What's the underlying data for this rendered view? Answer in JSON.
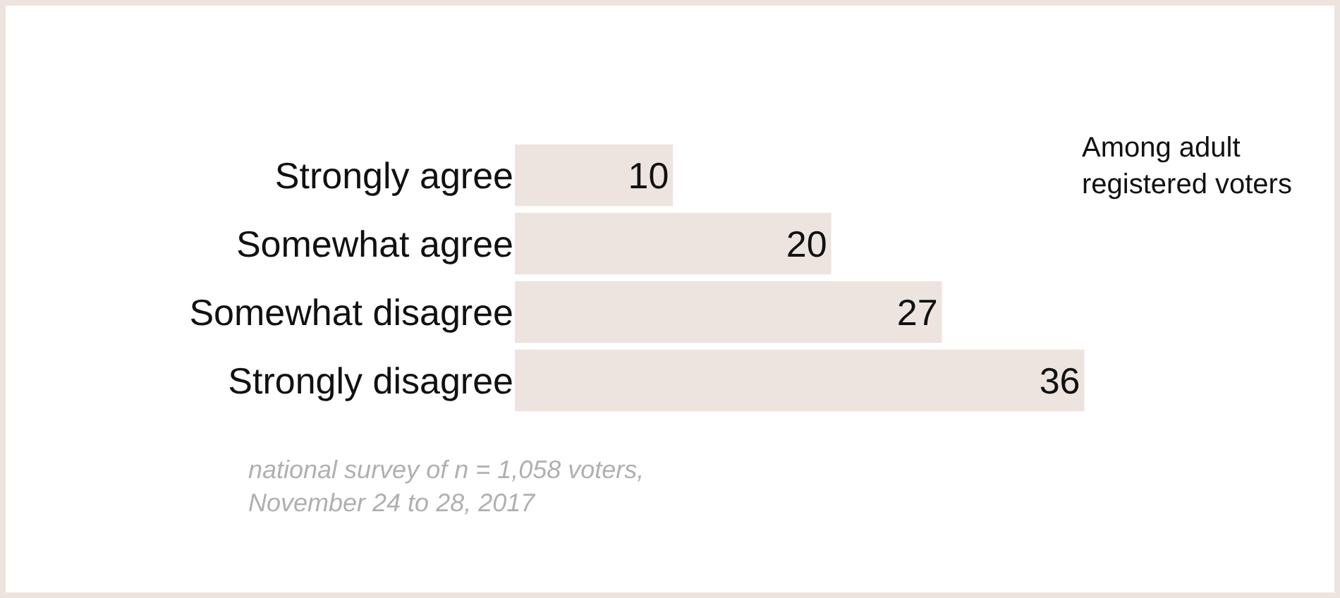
{
  "chart_data": {
    "type": "bar",
    "orientation": "horizontal",
    "categories": [
      "Strongly agree",
      "Somewhat agree",
      "Somewhat disagree",
      "Strongly disagree"
    ],
    "values": [
      10,
      20,
      27,
      36
    ],
    "color": "#ede4e0",
    "data_labels": true,
    "annotations": [
      "Among adult\nregistered voters",
      "national survey of n = 1,058 voters,\nNovember 24 to 28, 2017"
    ]
  }
}
